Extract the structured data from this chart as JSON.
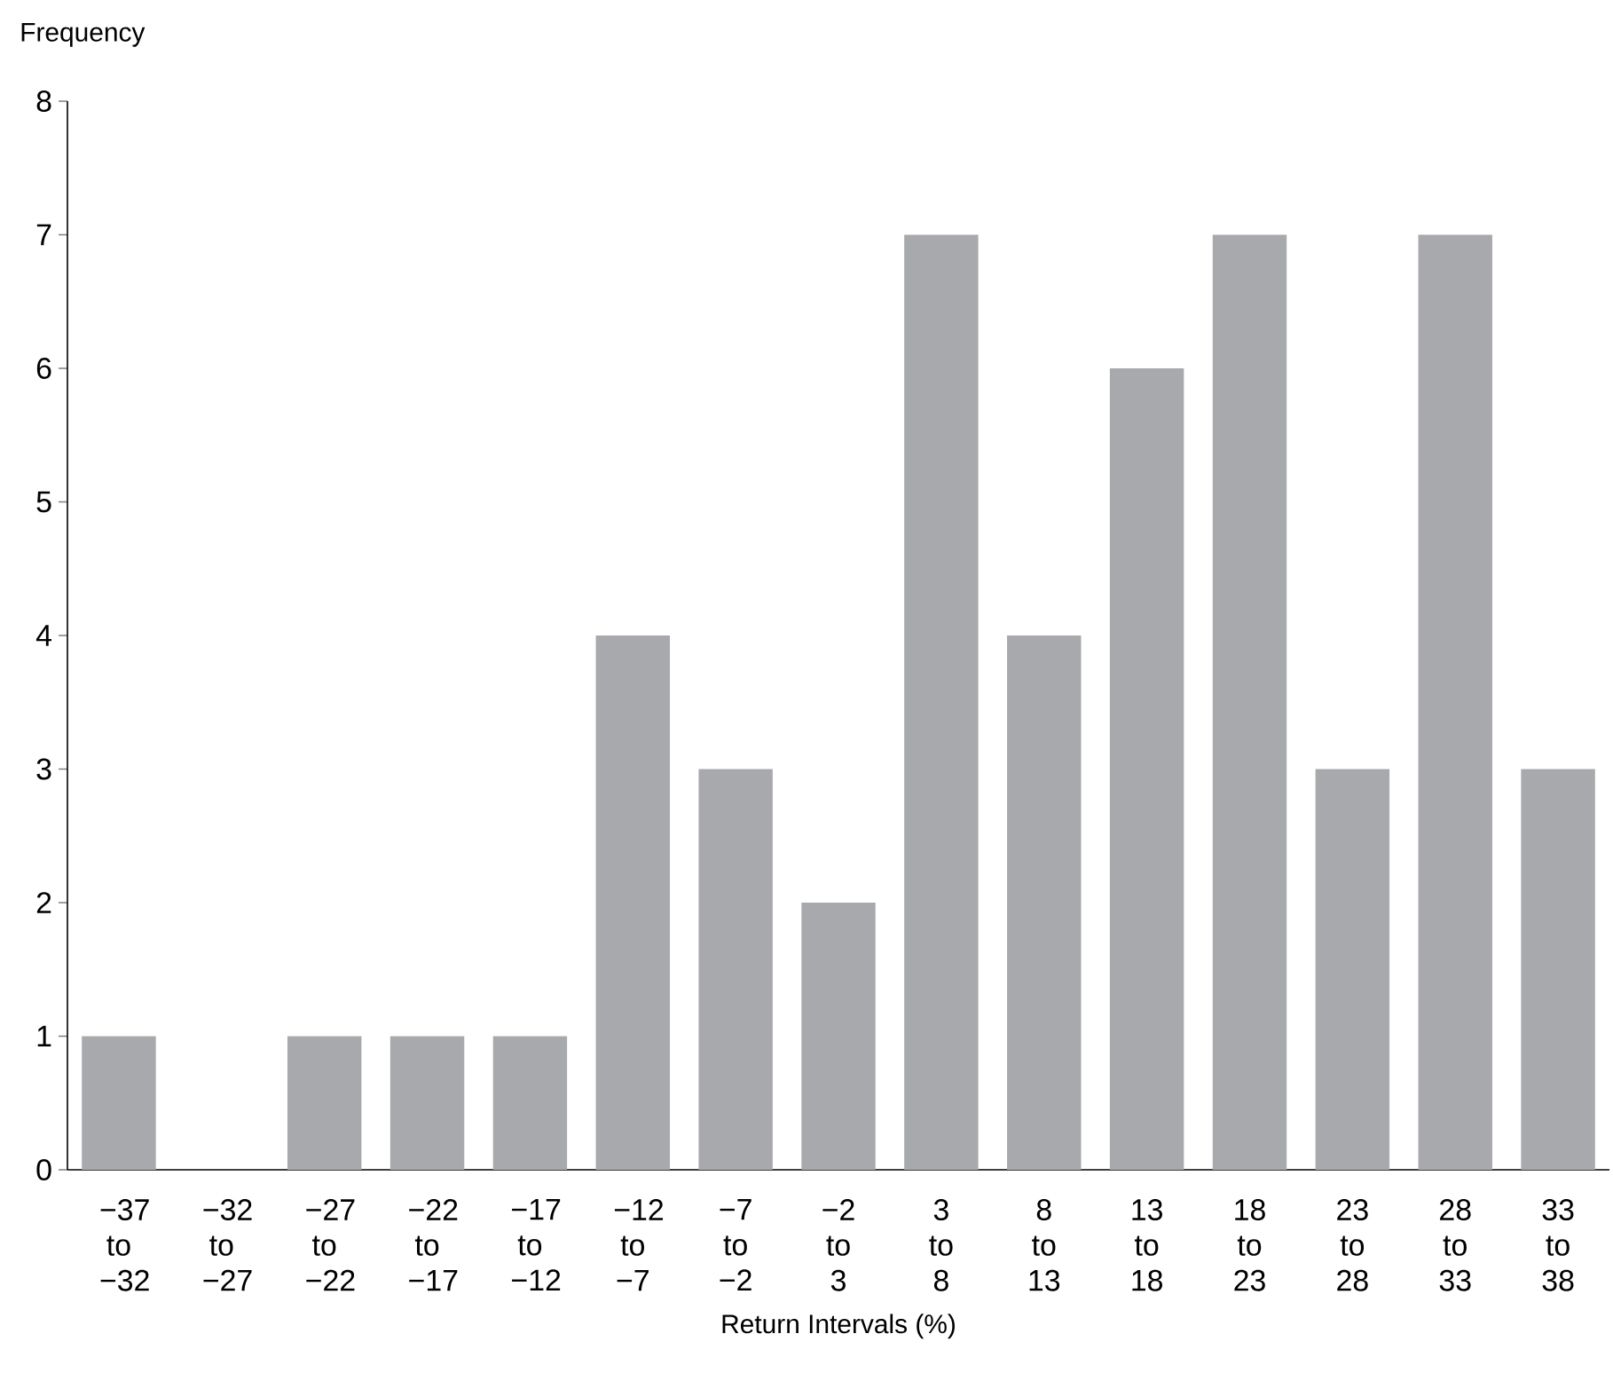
{
  "chart_data": {
    "type": "bar",
    "xlabel": "Return Intervals (%)",
    "ylabel": "Frequency",
    "categories": [
      "−37 to −32",
      "−32 to −27",
      "−27 to −22",
      "−22 to −17",
      "−17 to −12",
      "−12 to −7",
      "−7 to −2",
      "−2 to 3",
      "3 to 8",
      "8 to 13",
      "13 to 18",
      "18 to 23",
      "23 to 28",
      "28 to 33",
      "33 to 38"
    ],
    "values": [
      1,
      0,
      1,
      1,
      1,
      4,
      3,
      2,
      7,
      4,
      6,
      7,
      3,
      7,
      3
    ],
    "color": "#a7a9ac",
    "ylim": [
      0,
      8
    ],
    "yticks": [
      0,
      1,
      2,
      3,
      4,
      5,
      6,
      7,
      8
    ],
    "grid": false
  }
}
